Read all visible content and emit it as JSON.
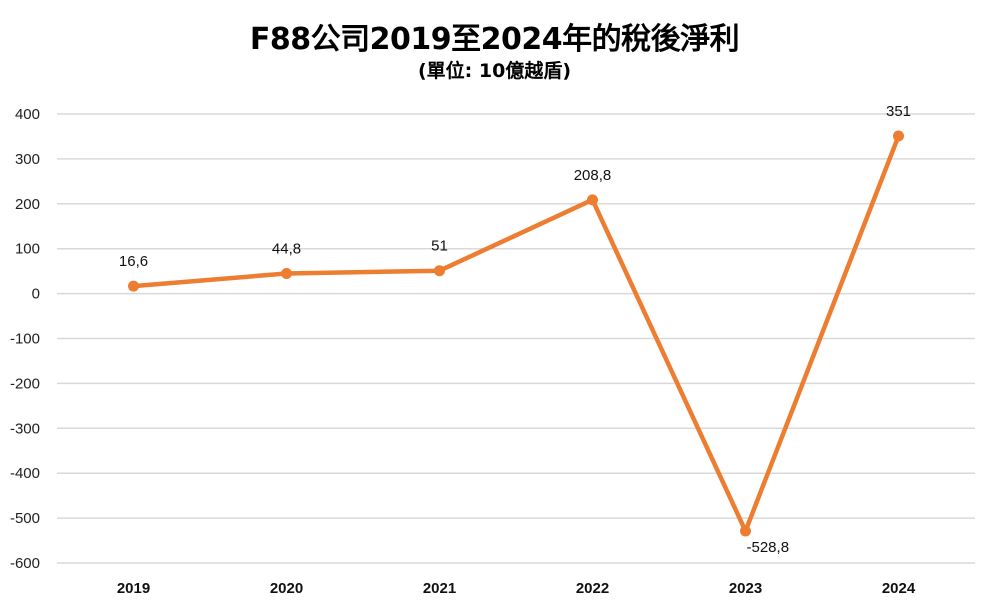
{
  "chart_data": {
    "type": "line",
    "title": "F88公司2019至2024年的稅後淨利",
    "subtitle": "(單位: 10億越盾)",
    "xlabel": "",
    "ylabel": "",
    "categories": [
      "2019",
      "2020",
      "2021",
      "2022",
      "2023",
      "2024"
    ],
    "series": [
      {
        "name": "稅後淨利",
        "values": [
          16.6,
          44.8,
          51,
          208.8,
          -528.8,
          351
        ],
        "labels": [
          "16,6",
          "44,8",
          "51",
          "208,8",
          "-528,8",
          "351"
        ],
        "color": "#ED7D31"
      }
    ],
    "ylim": [
      -600,
      400
    ],
    "yticks": [
      "400",
      "300",
      "200",
      "100",
      "0",
      "-100",
      "-200",
      "-300",
      "-400",
      "-500",
      "-600"
    ],
    "grid": true,
    "legend": "none"
  }
}
